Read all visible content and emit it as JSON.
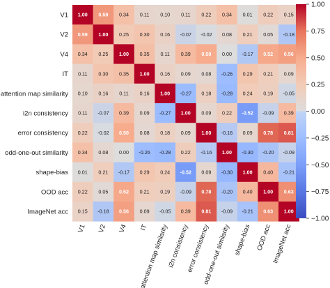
{
  "chart_data": {
    "type": "heatmap",
    "title": "",
    "xlabel": "",
    "ylabel": "",
    "labels": [
      "V1",
      "V2",
      "V4",
      "IT",
      "attention map similarity",
      "i2n consistency",
      "error consistency",
      "odd-one-out similarity",
      "shape-bias",
      "OOD acc",
      "ImageNet acc"
    ],
    "matrix": [
      [
        1.0,
        0.59,
        0.34,
        0.11,
        0.1,
        0.11,
        0.22,
        0.34,
        0.01,
        0.22,
        0.15
      ],
      [
        0.59,
        1.0,
        0.25,
        0.3,
        0.16,
        -0.07,
        -0.02,
        0.08,
        0.21,
        0.05,
        -0.18
      ],
      [
        0.34,
        0.25,
        1.0,
        0.35,
        0.11,
        0.39,
        0.5,
        0.0,
        -0.17,
        0.52,
        0.56
      ],
      [
        0.11,
        0.3,
        0.35,
        1.0,
        0.16,
        0.09,
        0.08,
        -0.26,
        0.29,
        0.21,
        0.09
      ],
      [
        0.1,
        0.16,
        0.11,
        0.16,
        1.0,
        -0.27,
        0.18,
        -0.28,
        0.24,
        0.19,
        -0.05
      ],
      [
        0.11,
        -0.07,
        0.39,
        0.09,
        -0.27,
        1.0,
        0.09,
        0.22,
        -0.52,
        -0.09,
        0.39
      ],
      [
        0.22,
        -0.02,
        0.5,
        0.08,
        0.18,
        0.09,
        1.0,
        -0.16,
        0.09,
        0.78,
        0.81
      ],
      [
        0.34,
        0.08,
        0.0,
        -0.26,
        -0.28,
        0.22,
        -0.16,
        1.0,
        -0.3,
        -0.2,
        -0.09
      ],
      [
        0.01,
        0.21,
        -0.17,
        0.29,
        0.24,
        -0.52,
        0.09,
        -0.3,
        1.0,
        0.4,
        -0.21
      ],
      [
        0.22,
        0.05,
        0.52,
        0.21,
        0.19,
        -0.09,
        0.78,
        -0.2,
        0.4,
        1.0,
        0.63
      ],
      [
        0.15,
        -0.18,
        0.56,
        0.09,
        -0.05,
        0.39,
        0.81,
        -0.09,
        -0.21,
        0.63,
        1.0
      ]
    ],
    "value_format": "2dp",
    "colormap": "coolwarm",
    "vmin": -1.0,
    "vmax": 1.0,
    "colorbar_ticks": [
      "1.00",
      "0.75",
      "0.50",
      "0.25",
      "0.00",
      "−0.25",
      "−0.50",
      "−0.75",
      "−1.00"
    ],
    "colorbar_tick_values": [
      1.0,
      0.75,
      0.5,
      0.25,
      0.0,
      -0.25,
      -0.5,
      -0.75,
      -1.0
    ]
  }
}
